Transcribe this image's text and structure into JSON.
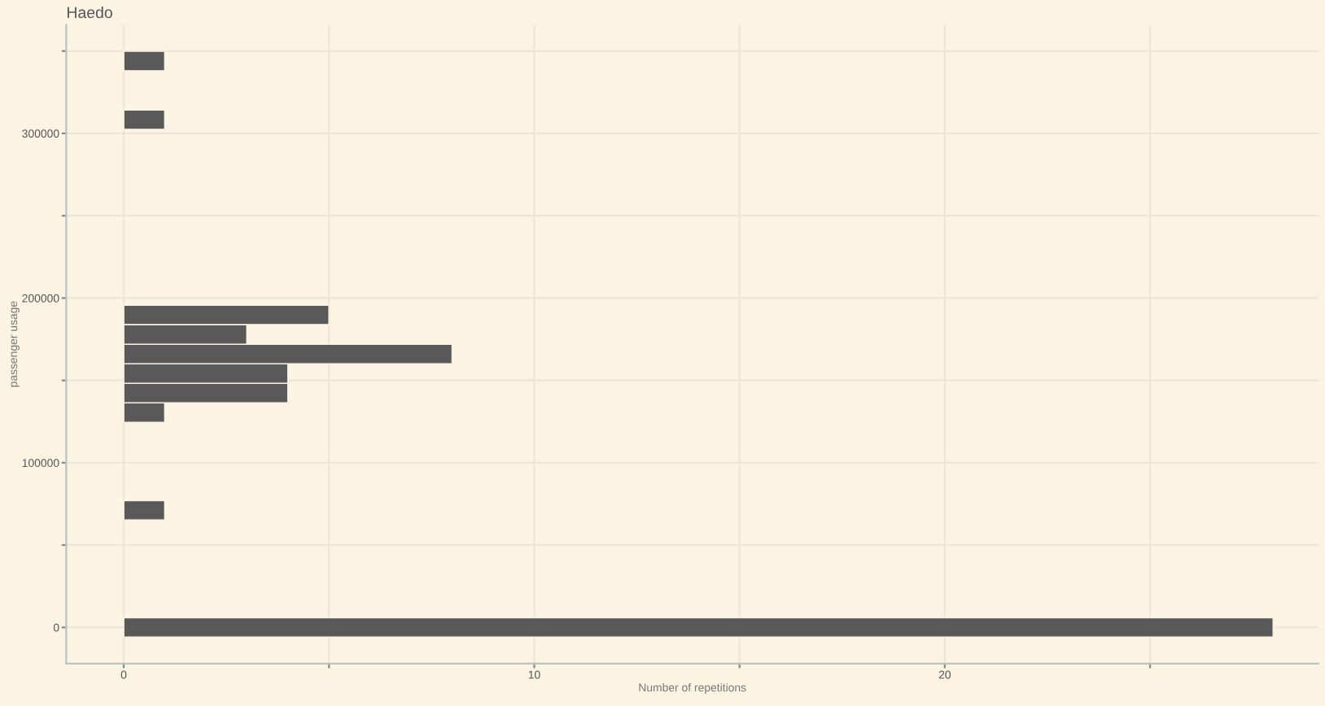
{
  "chart_data": {
    "type": "histogram",
    "orientation": "horizontal",
    "title": "Haedo",
    "xlabel": "Number of repetitions",
    "ylabel": "passenger usage",
    "bins": [
      -5930,
      5930,
      17790,
      29650,
      41510,
      53370,
      65230,
      77090,
      88950,
      100810,
      112670,
      124530,
      136390,
      148250,
      160110,
      171970,
      183830,
      195690,
      207550,
      219410,
      231270,
      243130,
      254990,
      266850,
      278710,
      290570,
      302430,
      314290,
      326150,
      338010,
      349870
    ],
    "values": [
      28,
      0,
      0,
      0,
      0,
      0,
      1,
      0,
      0,
      0,
      0,
      1,
      4,
      4,
      8,
      3,
      5,
      0,
      0,
      0,
      0,
      0,
      0,
      0,
      0,
      0,
      1,
      0,
      0,
      1
    ],
    "color": "#595959",
    "xlim": [
      -1.4,
      29.1
    ],
    "xticks": [
      0,
      {
        "value": 5,
        "label": null
      },
      10,
      {
        "value": 15,
        "label": null
      },
      20,
      {
        "value": 25,
        "label": null
      }
    ],
    "ylim": [
      -22000,
      366000
    ],
    "yticks": [
      0,
      {
        "value": 50000,
        "label": null
      },
      100000,
      {
        "value": 150000,
        "label": null
      },
      200000,
      {
        "value": 250000,
        "label": null
      },
      300000,
      {
        "value": 350000,
        "label": null
      }
    ],
    "grid": true
  }
}
